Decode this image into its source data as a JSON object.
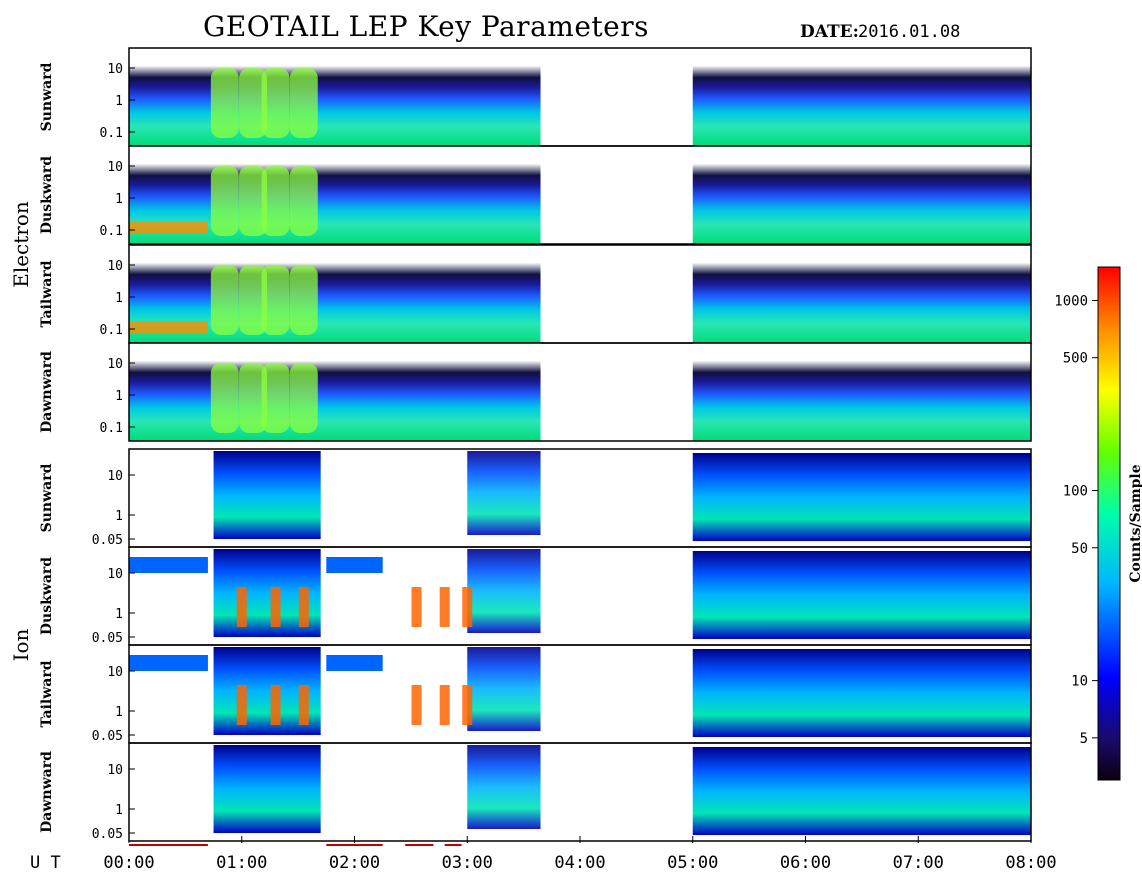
{
  "title": "GEOTAIL LEP Key Parameters",
  "date_label": "DATE:",
  "date_value": "2016.01.08",
  "ut_label": "U T",
  "species": [
    {
      "name": "Electron",
      "panels": [
        "Sunward",
        "Duskward",
        "Tailward",
        "Dawnward"
      ],
      "yticks": [
        "10",
        "1",
        "0.1"
      ]
    },
    {
      "name": "Ion",
      "panels": [
        "Sunward",
        "Duskward",
        "Tailward",
        "Dawnward"
      ],
      "yticks": [
        "10",
        "1",
        "0.05"
      ]
    }
  ],
  "colorbar": {
    "label": "Counts/Sample",
    "ticks": [
      "1000",
      "500",
      "100",
      "50",
      "10",
      "5"
    ],
    "tick_values": [
      1000,
      500,
      100,
      50,
      10,
      5
    ],
    "range": [
      3,
      1500
    ],
    "scale": "log"
  },
  "chart_data": {
    "type": "heatmap",
    "title": "GEOTAIL LEP Key Parameters",
    "date": "2016.01.08",
    "x_axis": {
      "label": "U T",
      "ticks": [
        "00:00",
        "01:00",
        "02:00",
        "03:00",
        "04:00",
        "05:00",
        "06:00",
        "07:00",
        "08:00"
      ],
      "range_hours": [
        0,
        8
      ]
    },
    "data_gaps_hours": [
      [
        3.65,
        5.0
      ]
    ],
    "electron_y_ticks": [
      "10",
      "1",
      "0.1"
    ],
    "ion_y_ticks": [
      "10",
      "1",
      "0.05"
    ],
    "colorbar": {
      "label": "Counts/Sample",
      "ticks": [
        1000,
        500,
        100,
        50,
        10,
        5
      ],
      "scale": "log"
    },
    "bottom_marker_intervals_hours": [
      [
        0.0,
        0.7
      ],
      [
        1.75,
        2.25
      ],
      [
        2.45,
        2.7
      ],
      [
        2.8,
        2.95
      ]
    ]
  }
}
